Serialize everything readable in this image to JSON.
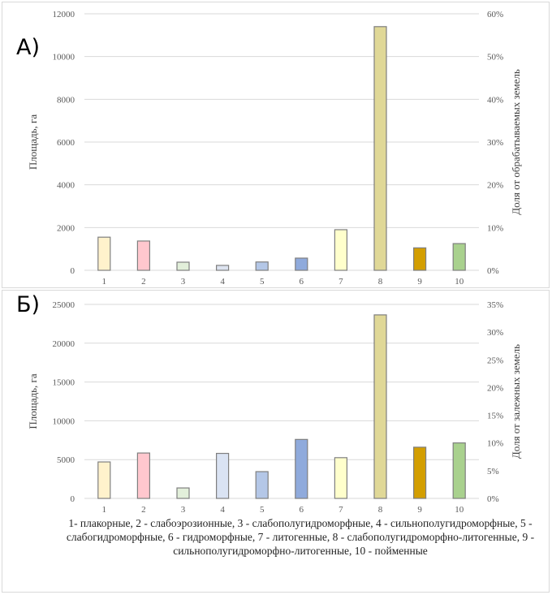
{
  "chart_data": [
    {
      "type": "bar",
      "panel_label": "А)",
      "title": "",
      "categories": [
        "1",
        "2",
        "3",
        "4",
        "5",
        "6",
        "7",
        "8",
        "9",
        "10"
      ],
      "values": [
        1550,
        1370,
        380,
        230,
        390,
        570,
        1900,
        11400,
        1050,
        1250
      ],
      "colors": [
        "#fff2cc",
        "#ffc7ce",
        "#e2efda",
        "#dde3f0",
        "#b4c7e7",
        "#8faadc",
        "#ffffcc",
        "#e0d897",
        "#d39e00",
        "#a9d18e"
      ],
      "xlabel": "",
      "ylabel": "Площадь, га",
      "ylim": [
        0,
        12000
      ],
      "yticks": [
        0,
        2000,
        4000,
        6000,
        8000,
        10000,
        12000
      ],
      "y2label": "Доля от обрабатываемых земель",
      "y2lim": [
        0,
        60
      ],
      "y2ticks": [
        "0%",
        "10%",
        "20%",
        "30%",
        "40%",
        "50%",
        "60%"
      ],
      "grid": true
    },
    {
      "type": "bar",
      "panel_label": "Б)",
      "title": "",
      "categories": [
        "1",
        "2",
        "3",
        "4",
        "5",
        "6",
        "7",
        "8",
        "9",
        "10"
      ],
      "values": [
        4700,
        5850,
        1350,
        5800,
        3450,
        7600,
        5250,
        23650,
        6600,
        7150
      ],
      "colors": [
        "#fff2cc",
        "#ffc7ce",
        "#e2efda",
        "#dae3f3",
        "#b4c7e7",
        "#8faadc",
        "#ffffcc",
        "#e0d897",
        "#d39e00",
        "#a9d18e"
      ],
      "xlabel": "",
      "ylabel": "Площадь, га",
      "ylim": [
        0,
        25000
      ],
      "yticks": [
        0,
        5000,
        10000,
        15000,
        20000,
        25000
      ],
      "y2label": "Доля от залежных земель",
      "y2lim": [
        0,
        35
      ],
      "y2ticks": [
        "0%",
        "5%",
        "10%",
        "15%",
        "20%",
        "25%",
        "30%",
        "35%"
      ],
      "grid": true
    }
  ],
  "caption": "1- плакорные, 2 - слабоэрозионные, 3 - слабополугидроморфные, 4 - сильнополугидроморфные, 5 - слабогидроморфные, 6 - гидроморфные, 7 - литогенные, 8 - слабополугидроморфно-литогенные, 9 - сильнополугидроморфно-литогенные, 10 - пойменные"
}
